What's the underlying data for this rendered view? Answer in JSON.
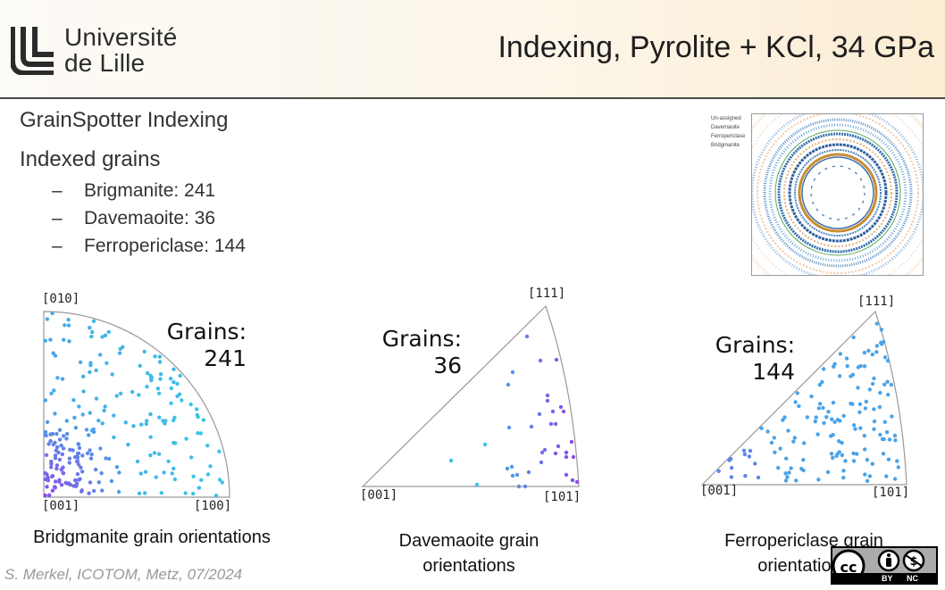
{
  "header": {
    "logo_line1": "Université",
    "logo_line2": "de Lille",
    "title": "Indexing, Pyrolite + KCl, 34 GPa"
  },
  "content": {
    "subtitle": "GrainSpotter Indexing",
    "heading": "Indexed grains",
    "bullets": [
      {
        "dash": "–",
        "text": "Brigmanite: 241"
      },
      {
        "dash": "–",
        "text": "Davemaoite: 36"
      },
      {
        "dash": "–",
        "text": "Ferropericlase: 144"
      }
    ]
  },
  "diffraction_image": {
    "legend": [
      "Un-assigned",
      "Davemaoite",
      "Ferropericlase",
      "Bridgmanite"
    ],
    "legend_colors": [
      "#e8b98a",
      "#3a9a4a",
      "#d9a040",
      "#2b6cb0"
    ]
  },
  "plots": [
    {
      "id": "bridgmanite",
      "corner_labels": {
        "top": "[010]",
        "bottom_left": "[001]",
        "bottom_right": "[100]"
      },
      "grains_label": "Grains:",
      "grains_count": "241",
      "caption": "Bridgmanite grain orientations"
    },
    {
      "id": "davemaoite",
      "corner_labels": {
        "top": "[111]",
        "bottom_left": "[001]",
        "bottom_right": "[101]"
      },
      "grains_label": "Grains:",
      "grains_count": "36",
      "caption_line1": "Davemaoite grain",
      "caption_line2": "orientations"
    },
    {
      "id": "ferropericlase",
      "corner_labels": {
        "top": "[111]",
        "bottom_left": "[001]",
        "bottom_right": "[101]"
      },
      "grains_label": "Grains:",
      "grains_count": "144",
      "caption_line1": "Ferropericlase grain",
      "caption_line2": "orientations"
    }
  ],
  "footer": {
    "credit": "S. Merkel, ICOTOM, Metz, 07/2024"
  },
  "license": {
    "icons": [
      "cc-icon",
      "by-icon",
      "nc-icon"
    ],
    "labels": [
      "BY",
      "NC"
    ]
  },
  "colors": {
    "dot_blue": "#4aa3e8",
    "dot_cyan": "#3cc3e6",
    "dot_purple": "#8a4de8",
    "header_rule": "#4a4a45"
  }
}
